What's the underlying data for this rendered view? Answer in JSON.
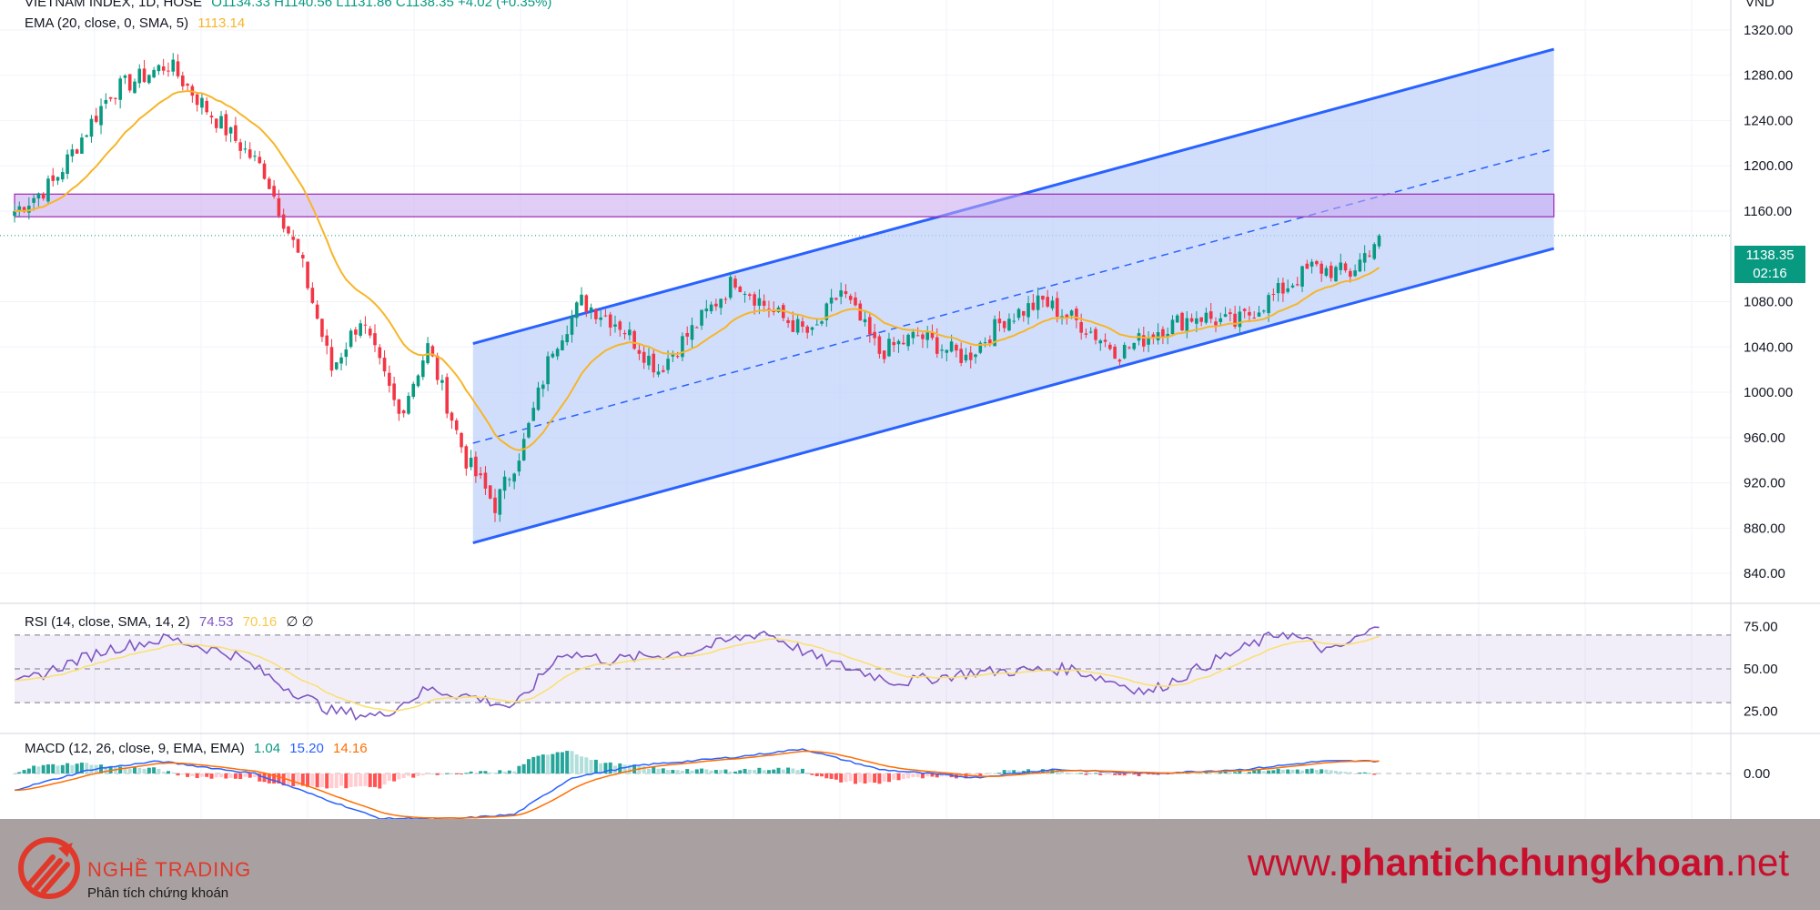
{
  "header": {
    "symbol_line": "VIETNAM INDEX, 1D, HOSE",
    "ohlc": "O1134.33  H1140.56  L1131.86  C1138.35  +4.02 (+0.35%)",
    "currency": "VND",
    "ema_label": "EMA (20, close, 0, SMA, 5)",
    "ema_value": "1113.14"
  },
  "price_tag": {
    "price": "1138.35",
    "countdown": "02:16"
  },
  "rsi_legend": {
    "label": "RSI (14, close, SMA, 14, 2)",
    "rsi": "74.53",
    "sma": "70.16",
    "extra": "∅  ∅"
  },
  "macd_legend": {
    "label": "MACD (12, 26, close, 9, EMA, EMA)",
    "hist": "1.04",
    "macd": "15.20",
    "signal": "14.16"
  },
  "footer": {
    "brand_name": "NGHỀ TRADING",
    "brand_tagline": "Phân tích chứng khoán",
    "url_prefix": "www.",
    "url_bold": "phantichchungkhoan",
    "url_suffix": ".net"
  },
  "colors": {
    "up": "#089981",
    "down": "#f23645",
    "ema": "#f7b529",
    "channel": "#2962ff",
    "channel_fill": "#bcd0fb",
    "zone_fill": "#c9a6f0",
    "zone_border": "#9c27b0",
    "rsi_line": "#7e57c2",
    "rsi_sma": "#f9e076",
    "macd": "#2962ff",
    "signal": "#ff6d00"
  },
  "chart_data": [
    {
      "type": "candlestick",
      "title": "VIETNAM INDEX, 1D, HOSE",
      "y_ticks": [
        840,
        880,
        920,
        960,
        1000,
        1040,
        1080,
        1160,
        1200,
        1240,
        1280,
        1320
      ],
      "ylim": [
        820,
        1340
      ],
      "last_close": 1138.35,
      "ohlc_keypoints": [
        {
          "i": 0,
          "close": 1160
        },
        {
          "i": 8,
          "close": 1185
        },
        {
          "i": 20,
          "close": 1265
        },
        {
          "i": 32,
          "close": 1290
        },
        {
          "i": 40,
          "close": 1250
        },
        {
          "i": 52,
          "close": 1195
        },
        {
          "i": 60,
          "close": 1110
        },
        {
          "i": 66,
          "close": 1020
        },
        {
          "i": 72,
          "close": 1065
        },
        {
          "i": 80,
          "close": 980
        },
        {
          "i": 86,
          "close": 1040
        },
        {
          "i": 94,
          "close": 940
        },
        {
          "i": 100,
          "close": 900
        },
        {
          "i": 106,
          "close": 955
        },
        {
          "i": 112,
          "close": 1040
        },
        {
          "i": 118,
          "close": 1080
        },
        {
          "i": 126,
          "close": 1060
        },
        {
          "i": 134,
          "close": 1020
        },
        {
          "i": 142,
          "close": 1060
        },
        {
          "i": 150,
          "close": 1100
        },
        {
          "i": 158,
          "close": 1070
        },
        {
          "i": 166,
          "close": 1050
        },
        {
          "i": 172,
          "close": 1090
        },
        {
          "i": 180,
          "close": 1035
        },
        {
          "i": 188,
          "close": 1050
        },
        {
          "i": 198,
          "close": 1030
        },
        {
          "i": 206,
          "close": 1065
        },
        {
          "i": 214,
          "close": 1080
        },
        {
          "i": 222,
          "close": 1060
        },
        {
          "i": 230,
          "close": 1035
        },
        {
          "i": 238,
          "close": 1055
        },
        {
          "i": 246,
          "close": 1068
        },
        {
          "i": 254,
          "close": 1060
        },
        {
          "i": 262,
          "close": 1085
        },
        {
          "i": 270,
          "close": 1110
        },
        {
          "i": 278,
          "close": 1105
        },
        {
          "i": 284,
          "close": 1138.35
        }
      ],
      "ema20_last": 1113.14,
      "channel": {
        "start": {
          "i": 92,
          "upper": 1043,
          "lower": 867
        },
        "end": {
          "i": 320,
          "upper": 1303,
          "lower": 1127
        }
      },
      "resistance_zone": [
        1155,
        1175
      ]
    },
    {
      "type": "line",
      "title": "RSI (14, close, SMA, 14, 2)",
      "y_ticks": [
        25,
        50,
        75
      ],
      "ylim": [
        15,
        85
      ],
      "bands": [
        30,
        50,
        70
      ],
      "rsi_keypoints": [
        {
          "i": 0,
          "v": 40
        },
        {
          "i": 10,
          "v": 52
        },
        {
          "i": 20,
          "v": 62
        },
        {
          "i": 32,
          "v": 68
        },
        {
          "i": 46,
          "v": 58
        },
        {
          "i": 56,
          "v": 40
        },
        {
          "i": 66,
          "v": 25
        },
        {
          "i": 76,
          "v": 22
        },
        {
          "i": 86,
          "v": 38
        },
        {
          "i": 96,
          "v": 33
        },
        {
          "i": 104,
          "v": 27
        },
        {
          "i": 114,
          "v": 60
        },
        {
          "i": 124,
          "v": 55
        },
        {
          "i": 140,
          "v": 60
        },
        {
          "i": 156,
          "v": 72
        },
        {
          "i": 168,
          "v": 55
        },
        {
          "i": 184,
          "v": 42
        },
        {
          "i": 200,
          "v": 48
        },
        {
          "i": 220,
          "v": 50
        },
        {
          "i": 236,
          "v": 36
        },
        {
          "i": 250,
          "v": 55
        },
        {
          "i": 264,
          "v": 72
        },
        {
          "i": 274,
          "v": 60
        },
        {
          "i": 284,
          "v": 74.53
        }
      ],
      "rsi_last": 74.53,
      "sma_last": 70.16
    },
    {
      "type": "line",
      "title": "MACD (12, 26, close, 9, EMA, EMA)",
      "y_ticks": [
        0
      ],
      "macd_keypoints": [
        {
          "i": 0,
          "v": -20
        },
        {
          "i": 16,
          "v": 5
        },
        {
          "i": 30,
          "v": 15
        },
        {
          "i": 50,
          "v": 0
        },
        {
          "i": 64,
          "v": -30
        },
        {
          "i": 76,
          "v": -55
        },
        {
          "i": 92,
          "v": -55
        },
        {
          "i": 104,
          "v": -50
        },
        {
          "i": 116,
          "v": -5
        },
        {
          "i": 130,
          "v": 10
        },
        {
          "i": 150,
          "v": 20
        },
        {
          "i": 164,
          "v": 30
        },
        {
          "i": 180,
          "v": 5
        },
        {
          "i": 200,
          "v": -5
        },
        {
          "i": 216,
          "v": 5
        },
        {
          "i": 236,
          "v": 0
        },
        {
          "i": 256,
          "v": 5
        },
        {
          "i": 272,
          "v": 15
        },
        {
          "i": 284,
          "v": 15.2
        }
      ],
      "macd_last": 15.2,
      "signal_last": 14.16,
      "histogram_last": 1.04
    }
  ]
}
